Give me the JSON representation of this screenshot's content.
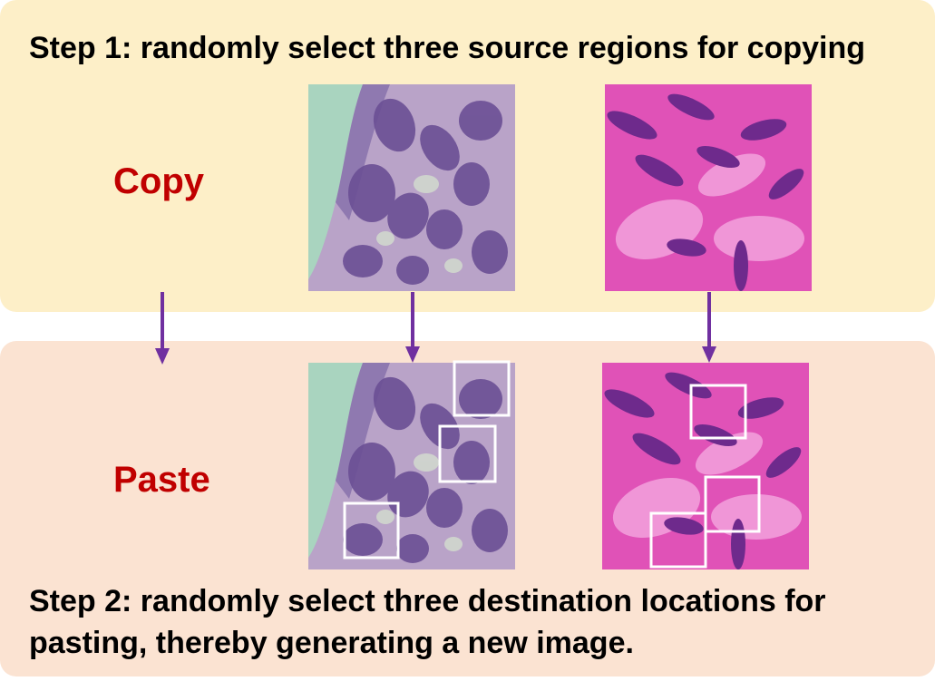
{
  "steps": {
    "step1": "Step 1: randomly select three source regions for copying",
    "step2": "Step 2: randomly select three destination locations for pasting, thereby generating a new image."
  },
  "labels": {
    "copy": "Copy",
    "paste": "Paste"
  },
  "colors": {
    "copy_panel": "#fdefc8",
    "paste_panel": "#fbe3d2",
    "label_red": "#c00000",
    "arrow_purple": "#7030a0",
    "box_white": "#ffffff"
  }
}
